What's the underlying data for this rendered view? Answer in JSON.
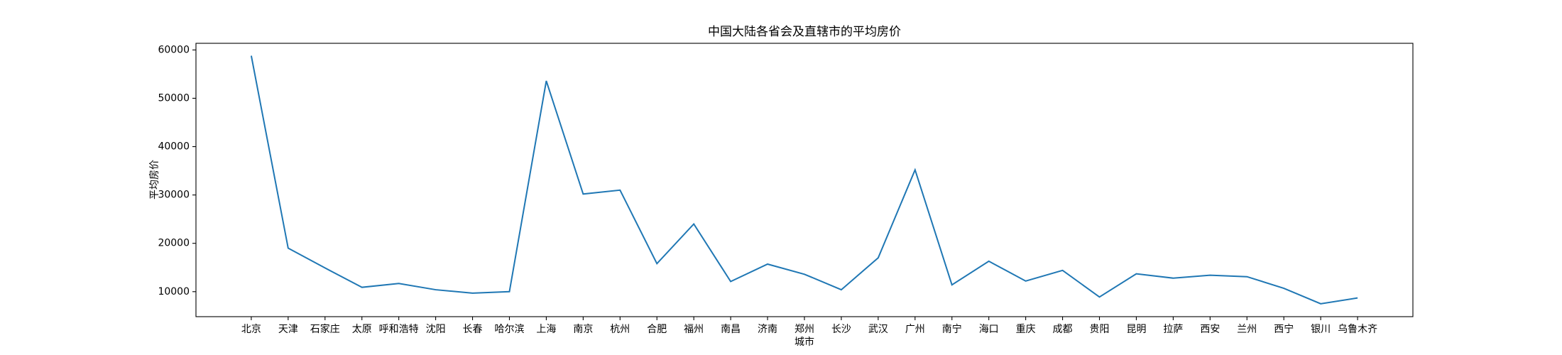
{
  "chart_data": {
    "type": "line",
    "title": "中国大陆各省会及直辖市的平均房价",
    "xlabel": "城市",
    "ylabel": "平均房价",
    "categories": [
      "北京",
      "天津",
      "石家庄",
      "太原",
      "呼和浩特",
      "沈阳",
      "长春",
      "哈尔滨",
      "上海",
      "南京",
      "杭州",
      "合肥",
      "福州",
      "南昌",
      "济南",
      "郑州",
      "长沙",
      "武汉",
      "广州",
      "南宁",
      "海口",
      "重庆",
      "成都",
      "贵阳",
      "昆明",
      "拉萨",
      "西安",
      "兰州",
      "西宁",
      "银川",
      "乌鲁木齐"
    ],
    "series": [
      {
        "name": "平均房价",
        "color": "#1f77b4",
        "values": [
          58800,
          19000,
          14900,
          10900,
          11700,
          10400,
          9700,
          10000,
          53600,
          30200,
          31000,
          15800,
          24000,
          12100,
          15700,
          13600,
          10400,
          17000,
          35200,
          11400,
          16300,
          12200,
          14400,
          8900,
          13700,
          12800,
          13400,
          13100,
          10700,
          7500,
          8700
        ]
      }
    ],
    "ylim": [
      4830,
      61370
    ],
    "yticks": [
      10000,
      20000,
      30000,
      40000,
      50000,
      60000
    ],
    "grid": false
  }
}
